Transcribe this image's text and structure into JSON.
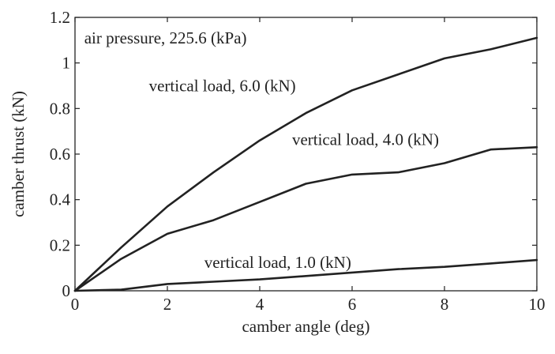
{
  "chart_data": {
    "type": "line",
    "title": "",
    "xlabel": "camber angle (deg)",
    "ylabel": "camber thrust (kN)",
    "xlim": [
      0,
      10
    ],
    "ylim": [
      0,
      1.2
    ],
    "xticks": [
      0,
      2,
      4,
      6,
      8,
      10
    ],
    "yticks": [
      0,
      0.2,
      0.4,
      0.6,
      0.8,
      1,
      1.2
    ],
    "xtick_labels": [
      "0",
      "2",
      "4",
      "6",
      "8",
      "10"
    ],
    "ytick_labels": [
      "0",
      "0.2",
      "0.4",
      "0.6",
      "0.8",
      "1",
      "1.2"
    ],
    "grid": false,
    "line_color": "#222222",
    "x": [
      0,
      1,
      2,
      3,
      4,
      5,
      6,
      7,
      8,
      9,
      10
    ],
    "series": [
      {
        "values": [
          0,
          0.19,
          0.37,
          0.52,
          0.66,
          0.78,
          0.88,
          0.95,
          1.02,
          1.06,
          1.11
        ]
      },
      {
        "values": [
          0,
          0.14,
          0.25,
          0.31,
          0.39,
          0.47,
          0.51,
          0.52,
          0.56,
          0.62,
          0.63
        ]
      },
      {
        "values": [
          0,
          0.005,
          0.03,
          0.04,
          0.05,
          0.065,
          0.08,
          0.095,
          0.105,
          0.12,
          0.135
        ]
      }
    ],
    "annotations": [
      {
        "text": "air pressure, 225.6 (kPa)",
        "x": 0.2,
        "y": 1.11
      },
      {
        "text": "vertical load, 6.0 (kN)",
        "x": 1.6,
        "y": 0.9
      },
      {
        "text": "vertical load, 4.0 (kN)",
        "x": 4.7,
        "y": 0.665
      },
      {
        "text": "vertical load, 1.0 (kN)",
        "x": 2.8,
        "y": 0.125
      }
    ]
  }
}
